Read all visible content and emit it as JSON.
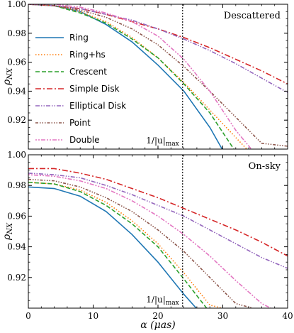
{
  "chart_data": [
    {
      "type": "line",
      "panel_label": "Descattered",
      "ylabel": "ρNX",
      "xlabel": "",
      "xlim": [
        0,
        40
      ],
      "ylim": [
        0.9,
        1.0
      ],
      "x_ticks": [
        0,
        10,
        20,
        30,
        40
      ],
      "x_tick_labels": [
        "0",
        "10",
        "20",
        "30",
        "40"
      ],
      "y_ticks": [
        0.92,
        0.94,
        0.96,
        0.98,
        1.0
      ],
      "y_tick_labels": [
        "0.92",
        "0.94",
        "0.96",
        "0.98",
        "1.00"
      ],
      "vline": {
        "x": 23.8,
        "label": "1/|u|max"
      },
      "legend": {
        "position": "left"
      },
      "series": [
        {
          "name": "Ring",
          "color": "#1f77b4",
          "dash": "",
          "x": [
            0,
            4,
            8,
            12,
            16,
            20,
            24,
            28,
            29.9
          ],
          "y": [
            1.0,
            0.999,
            0.995,
            0.986,
            0.974,
            0.958,
            0.94,
            0.915,
            0.9
          ]
        },
        {
          "name": "Ring+hs",
          "color": "#ff7f0e",
          "dash": "1.5,2.5",
          "x": [
            0,
            4,
            8,
            12,
            16,
            20,
            24,
            28,
            32,
            33.7
          ],
          "y": [
            1.0,
            0.999,
            0.995,
            0.988,
            0.977,
            0.963,
            0.946,
            0.927,
            0.908,
            0.9
          ]
        },
        {
          "name": "Crescent",
          "color": "#2ca02c",
          "dash": "6,3",
          "x": [
            0,
            4,
            8,
            12,
            16,
            20,
            24,
            28,
            31.7
          ],
          "y": [
            1.0,
            0.999,
            0.994,
            0.987,
            0.976,
            0.963,
            0.945,
            0.925,
            0.9
          ]
        },
        {
          "name": "Simple Disk",
          "color": "#d62728",
          "dash": "8,3,2,3",
          "x": [
            0,
            4,
            8,
            12,
            16,
            20,
            24,
            28,
            32,
            36,
            40
          ],
          "y": [
            1.0,
            0.999,
            0.997,
            0.993,
            0.988,
            0.983,
            0.977,
            0.97,
            0.962,
            0.954,
            0.945
          ]
        },
        {
          "name": "Elliptical Disk",
          "color": "#9467bd",
          "dash": "6,2,1.5,2,1.5,2",
          "x": [
            0,
            4,
            8,
            12,
            16,
            20,
            24,
            28,
            32,
            36,
            40
          ],
          "y": [
            1.0,
            0.999,
            0.997,
            0.993,
            0.989,
            0.983,
            0.976,
            0.968,
            0.959,
            0.949,
            0.939
          ]
        },
        {
          "name": "Point",
          "color": "#8c564b",
          "dash": "4,2,1.5,2,1.5,2,1.5,2",
          "x": [
            0,
            4,
            8,
            12,
            16,
            20,
            24,
            28,
            32,
            36,
            40
          ],
          "y": [
            1.0,
            0.999,
            0.996,
            0.991,
            0.983,
            0.972,
            0.957,
            0.94,
            0.922,
            0.904,
            0.902
          ]
        },
        {
          "name": "Double",
          "color": "#e377c2",
          "dash": "2,2,2,2,6,2",
          "x": [
            0,
            4,
            8,
            12,
            16,
            20,
            24,
            28,
            32,
            34.4
          ],
          "y": [
            1.0,
            1.0,
            0.998,
            0.994,
            0.988,
            0.978,
            0.962,
            0.94,
            0.913,
            0.9
          ]
        }
      ]
    },
    {
      "type": "line",
      "panel_label": "On-sky",
      "ylabel": "ρNX",
      "xlabel": "α (μas)",
      "xlim": [
        0,
        40
      ],
      "ylim": [
        0.9,
        1.0
      ],
      "x_ticks": [
        0,
        10,
        20,
        30,
        40
      ],
      "x_tick_labels": [
        "0",
        "10",
        "20",
        "30",
        "40"
      ],
      "y_ticks": [
        0.92,
        0.94,
        0.96,
        0.98,
        1.0
      ],
      "y_tick_labels": [
        "0.92",
        "0.94",
        "0.96",
        "0.98",
        "1.00"
      ],
      "vline": {
        "x": 23.8,
        "label": "1/|u|max"
      },
      "series": [
        {
          "name": "Ring",
          "color": "#1f77b4",
          "dash": "",
          "x": [
            0,
            4,
            8,
            12,
            16,
            20,
            24,
            25.9
          ],
          "y": [
            0.979,
            0.978,
            0.973,
            0.963,
            0.948,
            0.93,
            0.909,
            0.9
          ]
        },
        {
          "name": "Ring+hs",
          "color": "#ff7f0e",
          "dash": "1.5,2.5",
          "x": [
            0,
            4,
            8,
            12,
            16,
            20,
            24,
            28,
            29.9
          ],
          "y": [
            0.982,
            0.981,
            0.977,
            0.969,
            0.957,
            0.942,
            0.923,
            0.902,
            0.9
          ]
        },
        {
          "name": "Crescent",
          "color": "#2ca02c",
          "dash": "6,3",
          "x": [
            0,
            4,
            8,
            12,
            16,
            20,
            24,
            27.5
          ],
          "y": [
            0.982,
            0.981,
            0.976,
            0.967,
            0.955,
            0.94,
            0.919,
            0.9
          ]
        },
        {
          "name": "Simple Disk",
          "color": "#d62728",
          "dash": "8,3,2,3",
          "x": [
            0,
            4,
            8,
            12,
            16,
            20,
            24,
            28,
            32,
            36,
            40
          ],
          "y": [
            0.991,
            0.991,
            0.988,
            0.984,
            0.978,
            0.972,
            0.965,
            0.958,
            0.951,
            0.943,
            0.934
          ]
        },
        {
          "name": "Elliptical Disk",
          "color": "#9467bd",
          "dash": "6,2,1.5,2,1.5,2",
          "x": [
            0,
            4,
            8,
            12,
            16,
            20,
            24,
            28,
            32,
            36,
            40
          ],
          "y": [
            0.988,
            0.987,
            0.985,
            0.98,
            0.974,
            0.967,
            0.96,
            0.951,
            0.942,
            0.933,
            0.926
          ]
        },
        {
          "name": "Point",
          "color": "#8c564b",
          "dash": "4,2,1.5,2,1.5,2,1.5,2",
          "x": [
            0,
            4,
            8,
            12,
            16,
            20,
            24,
            28,
            32,
            34.6
          ],
          "y": [
            0.984,
            0.983,
            0.979,
            0.972,
            0.963,
            0.951,
            0.937,
            0.92,
            0.903,
            0.9
          ]
        },
        {
          "name": "Double",
          "color": "#e377c2",
          "dash": "2,2,2,2,6,2",
          "x": [
            0,
            4,
            8,
            12,
            16,
            20,
            24,
            28,
            32,
            36,
            37.4
          ],
          "y": [
            0.987,
            0.986,
            0.983,
            0.978,
            0.97,
            0.96,
            0.948,
            0.934,
            0.918,
            0.903,
            0.9
          ]
        }
      ]
    }
  ]
}
